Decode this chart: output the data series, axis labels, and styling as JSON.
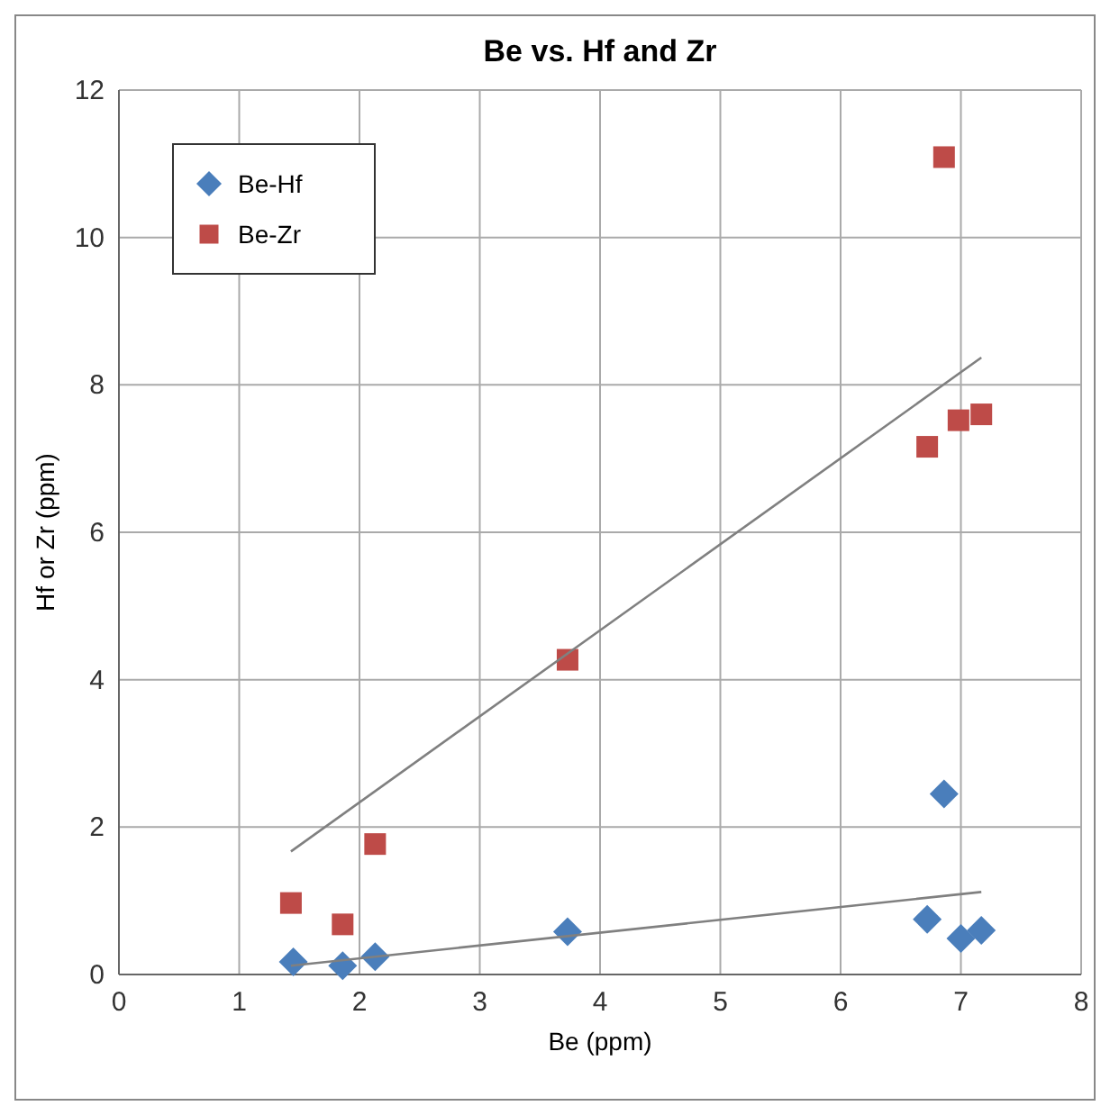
{
  "chart_data": {
    "type": "scatter",
    "title": "Be vs. Hf and Zr",
    "xlabel": "Be (ppm)",
    "ylabel": "Hf or Zr (ppm)",
    "xlim": [
      0,
      8
    ],
    "xticks": [
      0,
      1,
      2,
      3,
      4,
      5,
      6,
      7,
      8
    ],
    "ylim": [
      0,
      12
    ],
    "yticks": [
      0,
      2,
      4,
      6,
      8,
      10,
      12
    ],
    "grid": true,
    "legend": "top left",
    "series": [
      {
        "name": "Be-Hf",
        "color": "#4a7ebb",
        "marker": "diamond",
        "x": [
          1.45,
          1.86,
          2.13,
          3.73,
          6.72,
          6.86,
          7.0,
          7.17
        ],
        "values": [
          0.17,
          0.12,
          0.24,
          0.58,
          0.75,
          2.45,
          0.49,
          0.6
        ]
      },
      {
        "name": "Be-Zr",
        "color": "#be4b48",
        "marker": "square",
        "x": [
          1.43,
          1.86,
          2.13,
          3.73,
          6.72,
          6.86,
          6.98,
          7.17
        ],
        "values": [
          0.97,
          0.68,
          1.77,
          4.27,
          7.16,
          11.09,
          7.52,
          7.6
        ]
      },
      {
        "type": "line",
        "color": "#808080",
        "marker": "none",
        "x": [
          1.43,
          7.17
        ],
        "values": [
          0.12,
          1.12
        ]
      },
      {
        "type": "line",
        "color": "#808080",
        "marker": "none",
        "x": [
          1.43,
          7.17
        ],
        "values": [
          1.67,
          8.37
        ]
      }
    ]
  }
}
